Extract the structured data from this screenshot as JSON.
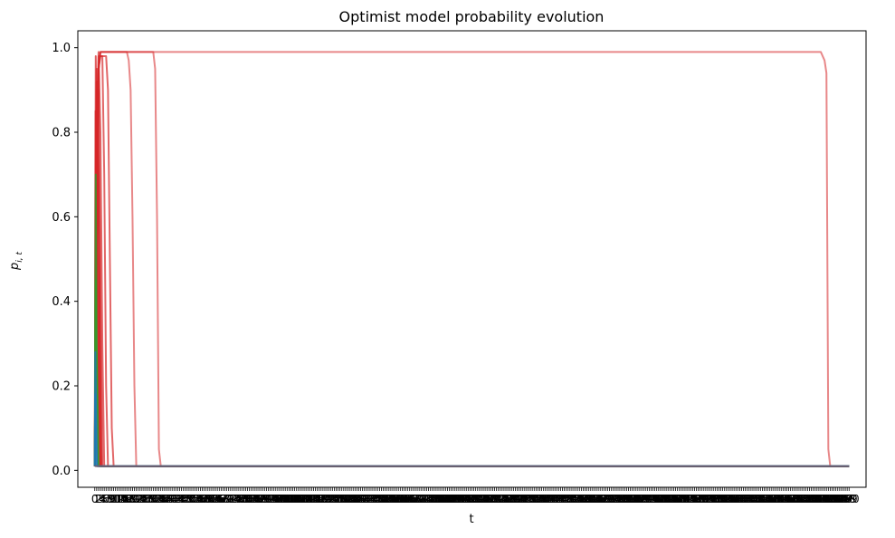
{
  "chart_data": {
    "type": "line",
    "title": "Optimist model probability evolution",
    "xlabel": "t",
    "ylabel_base": "p",
    "ylabel_sub": "i, t",
    "ylim": [
      -0.04,
      1.04
    ],
    "xlim": [
      -9,
      409
    ],
    "grid": false,
    "legend": "none",
    "y_ticks": [
      {
        "value": 0.0,
        "label": "0.0"
      },
      {
        "value": 0.2,
        "label": "0.2"
      },
      {
        "value": 0.4,
        "label": "0.4"
      },
      {
        "value": 0.6,
        "label": "0.6"
      },
      {
        "value": 0.8,
        "label": "0.8"
      },
      {
        "value": 1.0,
        "label": "1.0"
      }
    ],
    "x_tick_range": {
      "start": 0,
      "end": 400,
      "step": 1
    },
    "floor_value": 0.01,
    "colors": {
      "red": "#d62728",
      "green": "#2ca02c",
      "teal": "#1f77b4",
      "dark": "#6e5a6e"
    },
    "series": [
      {
        "color": "#d62728",
        "alpha": 0.55,
        "x": [
          0,
          1,
          2,
          3,
          31,
          32,
          33,
          34,
          35,
          400
        ],
        "y": [
          0.01,
          0.5,
          0.95,
          0.99,
          0.99,
          0.95,
          0.6,
          0.05,
          0.01,
          0.01
        ]
      },
      {
        "color": "#d62728",
        "alpha": 0.55,
        "x": [
          0,
          1,
          2,
          3,
          385,
          387,
          388,
          389,
          390,
          400
        ],
        "y": [
          0.01,
          0.5,
          0.95,
          0.99,
          0.99,
          0.97,
          0.94,
          0.05,
          0.01,
          0.01
        ]
      },
      {
        "color": "#d62728",
        "alpha": 0.55,
        "x": [
          0,
          1,
          2,
          3,
          17,
          18,
          19,
          20,
          21,
          22,
          400
        ],
        "y": [
          0.01,
          0.5,
          0.95,
          0.99,
          0.99,
          0.97,
          0.9,
          0.6,
          0.2,
          0.01,
          0.01
        ]
      },
      {
        "color": "#d62728",
        "alpha": 0.7,
        "x": [
          0,
          1,
          2,
          3,
          6,
          7,
          8,
          9,
          10,
          400
        ],
        "y": [
          0.01,
          0.5,
          0.95,
          0.98,
          0.98,
          0.9,
          0.5,
          0.1,
          0.01,
          0.01
        ]
      },
      {
        "color": "#d62728",
        "alpha": 0.7,
        "x": [
          0,
          1,
          2,
          4,
          5,
          6,
          7,
          400
        ],
        "y": [
          0.01,
          0.6,
          0.98,
          0.98,
          0.7,
          0.2,
          0.01,
          0.01
        ]
      },
      {
        "color": "#d62728",
        "alpha": 0.7,
        "x": [
          0,
          1,
          2,
          3,
          4,
          5,
          400
        ],
        "y": [
          0.01,
          0.8,
          0.99,
          0.8,
          0.3,
          0.01,
          0.01
        ]
      },
      {
        "color": "#d62728",
        "alpha": 0.75,
        "x": [
          0,
          1,
          2,
          3,
          4,
          400
        ],
        "y": [
          0.01,
          0.9,
          0.9,
          0.4,
          0.01,
          0.01
        ]
      },
      {
        "color": "#d62728",
        "alpha": 0.75,
        "x": [
          0,
          1,
          2,
          3,
          400
        ],
        "y": [
          0.01,
          0.95,
          0.7,
          0.01,
          0.01
        ]
      },
      {
        "color": "#d62728",
        "alpha": 0.75,
        "x": [
          0,
          0.5,
          1.5,
          2.5,
          400
        ],
        "y": [
          0.01,
          0.98,
          0.6,
          0.01,
          0.01
        ]
      },
      {
        "color": "#d62728",
        "alpha": 0.8,
        "x": [
          0,
          0.4,
          1.2,
          2,
          400
        ],
        "y": [
          0.01,
          0.85,
          0.4,
          0.01,
          0.01
        ]
      },
      {
        "color": "#d62728",
        "alpha": 0.8,
        "x": [
          0,
          0.6,
          1.8,
          3,
          400
        ],
        "y": [
          0.01,
          0.7,
          0.35,
          0.01,
          0.01
        ]
      },
      {
        "color": "#d62728",
        "alpha": 0.8,
        "x": [
          0,
          1,
          2.2,
          3.5,
          400
        ],
        "y": [
          0.01,
          0.92,
          0.55,
          0.01,
          0.01
        ]
      },
      {
        "color": "#2ca02c",
        "alpha": 0.8,
        "x": [
          0,
          0.5,
          1,
          2,
          400
        ],
        "y": [
          0.01,
          0.7,
          0.3,
          0.01,
          0.01
        ]
      },
      {
        "color": "#2ca02c",
        "alpha": 0.8,
        "x": [
          0,
          0.4,
          1,
          1.5,
          400
        ],
        "y": [
          0.01,
          0.45,
          0.2,
          0.01,
          0.01
        ]
      },
      {
        "color": "#1f77b4",
        "alpha": 0.8,
        "x": [
          0,
          0.3,
          0.8,
          1.2,
          400
        ],
        "y": [
          0.01,
          0.28,
          0.12,
          0.01,
          0.01
        ]
      },
      {
        "color": "#1f77b4",
        "alpha": 0.8,
        "x": [
          0,
          0.2,
          0.6,
          1,
          400
        ],
        "y": [
          0.01,
          0.18,
          0.07,
          0.01,
          0.01
        ]
      },
      {
        "color": "#6e5a6e",
        "alpha": 0.9,
        "x": [
          0,
          400
        ],
        "y": [
          0.01,
          0.01
        ]
      }
    ]
  }
}
